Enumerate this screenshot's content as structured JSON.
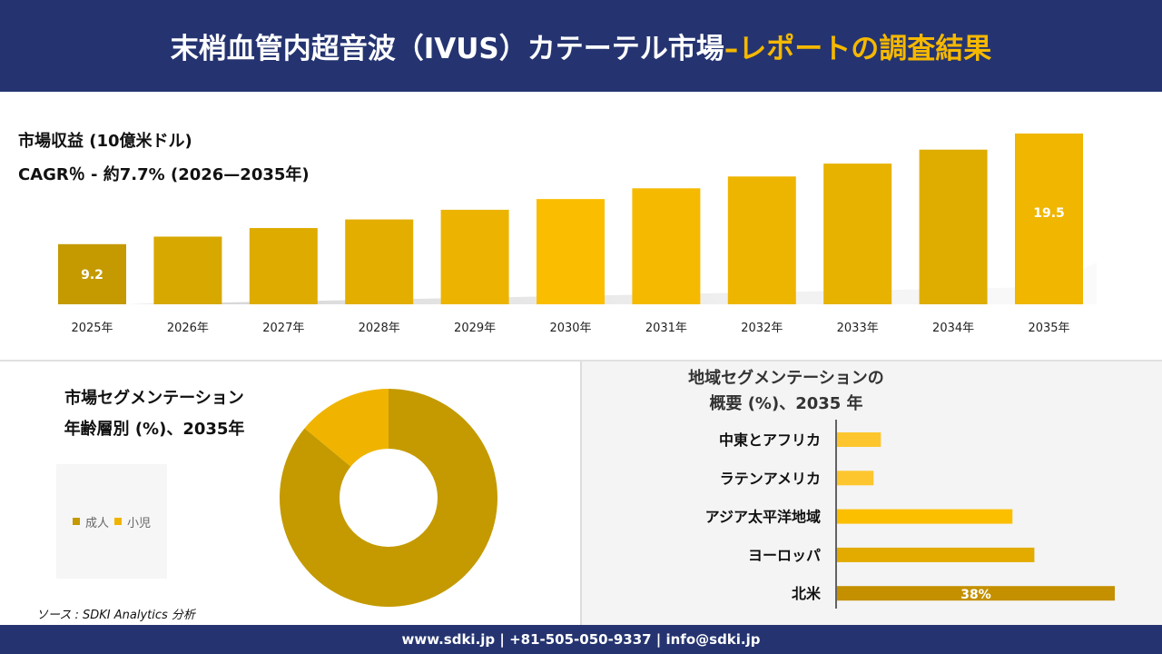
{
  "header": {
    "title_main": "末梢血管内超音波（IVUS）カテーテル市場",
    "title_accent": "–レポートの調査結果"
  },
  "colors": {
    "navy": "#253470",
    "accent": "#f5b800"
  },
  "chart_data": [
    {
      "type": "bar",
      "title": "市場収益 (10億米ドル)",
      "subtitle": "CAGR％ - 約7.7% (2026—2035年)",
      "categories": [
        "2025年",
        "2026年",
        "2027年",
        "2028年",
        "2029年",
        "2030年",
        "2031年",
        "2032年",
        "2033年",
        "2034年",
        "2035年"
      ],
      "values": [
        9.2,
        9.9,
        10.7,
        11.5,
        12.4,
        13.4,
        14.4,
        15.5,
        16.7,
        18.0,
        19.5
      ],
      "data_labels": {
        "0": "9.2",
        "10": "19.5"
      },
      "ylim": [
        3.6,
        19.5
      ],
      "colors": [
        "#c49a00",
        "#d7a800",
        "#deac00",
        "#e3ae00",
        "#ecb400",
        "#fbbd00",
        "#f5b900",
        "#eeb500",
        "#e7b200",
        "#dead00",
        "#f0b600"
      ]
    },
    {
      "type": "pie",
      "title": "市場セグメンテーション",
      "subtitle": "年齢層別 (%)、2035年",
      "labels": [
        "成人",
        "小児"
      ],
      "values": [
        86,
        14
      ],
      "colors": [
        "#c49a00",
        "#f0b400"
      ],
      "hole": 0.45
    },
    {
      "type": "bar",
      "orientation": "horizontal",
      "title": "地域セグメンテーションの",
      "subtitle": "概要 (%)、2035 年",
      "categories": [
        "中東とアフリカ",
        "ラテンアメリカ",
        "アジア太平洋地域",
        "ヨーロッパ",
        "北米"
      ],
      "values": [
        6,
        5,
        24,
        27,
        38
      ],
      "data_labels": {
        "4": "38%"
      },
      "xlim": [
        0,
        38
      ],
      "colors": [
        "#fdc62e",
        "#fdc62e",
        "#fcbf00",
        "#e3ab00",
        "#c49000"
      ]
    }
  ],
  "source": "ソース : SDKI Analytics 分析",
  "footer": "www.sdki.jp | +81-505-050-9337 | info@sdki.jp"
}
